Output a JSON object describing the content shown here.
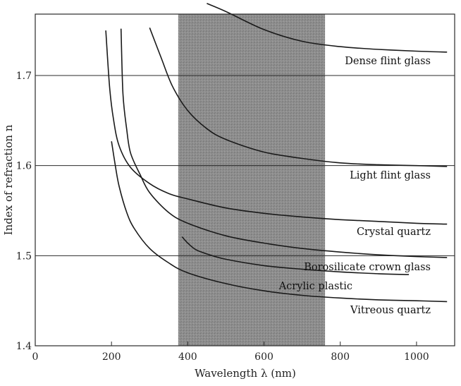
{
  "chart_data": {
    "type": "line",
    "xlabel": "Wavelength λ (nm)",
    "ylabel": "Index of refraction n",
    "xlim": [
      0,
      1100
    ],
    "ylim": [
      1.4,
      1.77
    ],
    "x_ticks": [
      0,
      200,
      400,
      600,
      800,
      1000
    ],
    "y_ticks": [
      1.4,
      1.5,
      1.6,
      1.7
    ],
    "grid": "horizontal",
    "shaded_band": {
      "x": [
        375,
        760
      ],
      "meaning": "visible spectrum"
    },
    "series": [
      {
        "name": "Dense flint glass",
        "points": [
          [
            450,
            1.78
          ],
          [
            500,
            1.771
          ],
          [
            600,
            1.751
          ],
          [
            700,
            1.738
          ],
          [
            800,
            1.732
          ],
          [
            900,
            1.729
          ],
          [
            1000,
            1.727
          ],
          [
            1080,
            1.726
          ]
        ]
      },
      {
        "name": "Light flint glass",
        "points": [
          [
            300,
            1.753
          ],
          [
            330,
            1.72
          ],
          [
            360,
            1.688
          ],
          [
            400,
            1.661
          ],
          [
            450,
            1.641
          ],
          [
            500,
            1.629
          ],
          [
            600,
            1.615
          ],
          [
            700,
            1.608
          ],
          [
            800,
            1.603
          ],
          [
            900,
            1.601
          ],
          [
            1000,
            1.6
          ],
          [
            1080,
            1.599
          ]
        ]
      },
      {
        "name": "Crystal quartz",
        "points": [
          [
            185,
            1.75
          ],
          [
            195,
            1.687
          ],
          [
            205,
            1.652
          ],
          [
            220,
            1.622
          ],
          [
            250,
            1.598
          ],
          [
            300,
            1.58
          ],
          [
            350,
            1.569
          ],
          [
            400,
            1.563
          ],
          [
            500,
            1.553
          ],
          [
            600,
            1.547
          ],
          [
            700,
            1.543
          ],
          [
            800,
            1.54
          ],
          [
            900,
            1.538
          ],
          [
            1000,
            1.536
          ],
          [
            1080,
            1.535
          ]
        ]
      },
      {
        "name": "Borosilicate crown glass",
        "points": [
          [
            225,
            1.752
          ],
          [
            230,
            1.68
          ],
          [
            240,
            1.64
          ],
          [
            250,
            1.614
          ],
          [
            275,
            1.59
          ],
          [
            300,
            1.57
          ],
          [
            350,
            1.548
          ],
          [
            400,
            1.536
          ],
          [
            500,
            1.522
          ],
          [
            600,
            1.514
          ],
          [
            700,
            1.508
          ],
          [
            800,
            1.504
          ],
          [
            900,
            1.501
          ],
          [
            1000,
            1.499
          ],
          [
            1080,
            1.498
          ]
        ]
      },
      {
        "name": "Acrylic plastic",
        "points": [
          [
            385,
            1.521
          ],
          [
            400,
            1.514
          ],
          [
            420,
            1.507
          ],
          [
            450,
            1.502
          ],
          [
            500,
            1.496
          ],
          [
            600,
            1.489
          ],
          [
            700,
            1.485
          ],
          [
            800,
            1.482
          ],
          [
            900,
            1.48
          ],
          [
            980,
            1.479
          ]
        ]
      },
      {
        "name": "Vitreous quartz",
        "points": [
          [
            200,
            1.627
          ],
          [
            210,
            1.6
          ],
          [
            220,
            1.577
          ],
          [
            240,
            1.548
          ],
          [
            260,
            1.53
          ],
          [
            300,
            1.508
          ],
          [
            350,
            1.492
          ],
          [
            400,
            1.481
          ],
          [
            500,
            1.469
          ],
          [
            600,
            1.461
          ],
          [
            700,
            1.456
          ],
          [
            800,
            1.453
          ],
          [
            900,
            1.451
          ],
          [
            1000,
            1.45
          ],
          [
            1080,
            1.449
          ]
        ]
      }
    ]
  }
}
